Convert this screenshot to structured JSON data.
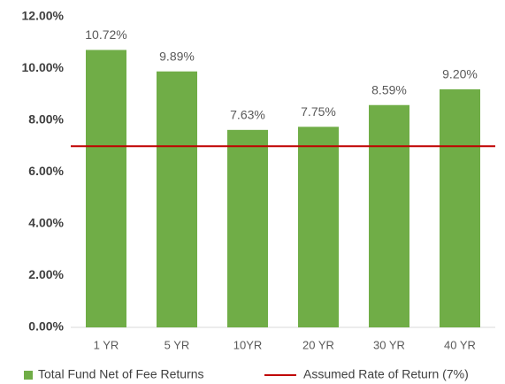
{
  "chart_data": {
    "type": "bar",
    "categories": [
      "1 YR",
      "5 YR",
      "10YR",
      "20 YR",
      "30 YR",
      "40 YR"
    ],
    "series": [
      {
        "name": "Total Fund Net of Fee Returns",
        "color": "#70ad47",
        "values": [
          10.72,
          9.89,
          7.63,
          7.75,
          8.59,
          9.2
        ],
        "value_labels": [
          "10.72%",
          "9.89%",
          "7.63%",
          "7.75%",
          "8.59%",
          "9.20%"
        ]
      }
    ],
    "reference_line": {
      "name": "Assumed Rate of Return (7%)",
      "value": 7,
      "color": "#c00000"
    },
    "ylim": [
      0,
      12
    ],
    "yticks": [
      {
        "value": 0,
        "label": "0.00%"
      },
      {
        "value": 2,
        "label": "2.00%"
      },
      {
        "value": 4,
        "label": "4.00%"
      },
      {
        "value": 6,
        "label": "6.00%"
      },
      {
        "value": 8,
        "label": "8.00%"
      },
      {
        "value": 10,
        "label": "10.00%"
      },
      {
        "value": 12,
        "label": "12.00%"
      }
    ],
    "legend": "bottom"
  }
}
